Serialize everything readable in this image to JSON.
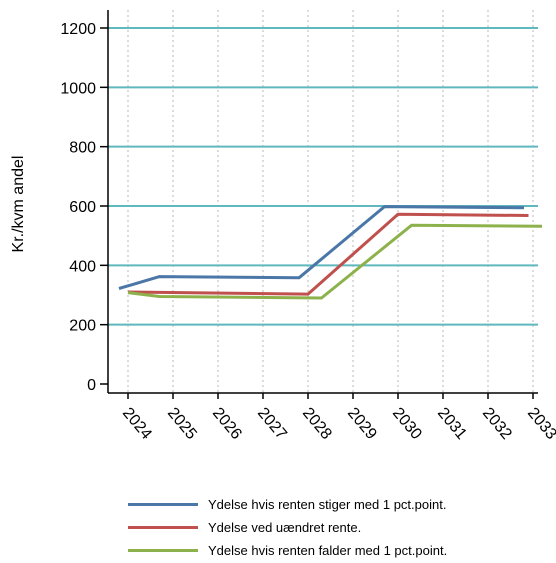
{
  "chart_data": {
    "type": "line",
    "ylabel": "Kr./kvm andel",
    "xlabel": "",
    "ylim": [
      0,
      1260
    ],
    "yticks": [
      0,
      200,
      400,
      600,
      800,
      1000,
      1200
    ],
    "ytick_labels": [
      "0",
      "200",
      "400",
      "600",
      "800",
      "1000",
      "1200"
    ],
    "x_categories": [
      "2024",
      "2025",
      "2026",
      "2027",
      "2028",
      "2029",
      "2030",
      "2031",
      "2032",
      "2033"
    ],
    "grid": {
      "horizontal": true,
      "vertical": "dotted"
    },
    "colors": {
      "grid": "#5fb8bd",
      "vgrid": "#b9b9b9",
      "axis": "#000000"
    },
    "legend_position": "bottom",
    "series": [
      {
        "name": "Ydelse hvis renten stiger med 1 pct.point.",
        "color": "#4a76a8",
        "points": [
          [
            2023.8,
            322
          ],
          [
            2024.7,
            362
          ],
          [
            2027.8,
            358
          ],
          [
            2029.7,
            598
          ],
          [
            2032.8,
            594
          ]
        ]
      },
      {
        "name": "Ydelse ved uændret rente.",
        "color": "#c0504d",
        "points": [
          [
            2024.0,
            310
          ],
          [
            2028.0,
            303
          ],
          [
            2030.0,
            572
          ],
          [
            2032.9,
            568
          ]
        ]
      },
      {
        "name": "Ydelse hvis renten falder med 1 pct.point.",
        "color": "#8db24c",
        "points": [
          [
            2024.0,
            308
          ],
          [
            2024.7,
            295
          ],
          [
            2028.3,
            290
          ],
          [
            2030.3,
            535
          ],
          [
            2033.2,
            532
          ]
        ]
      }
    ]
  }
}
